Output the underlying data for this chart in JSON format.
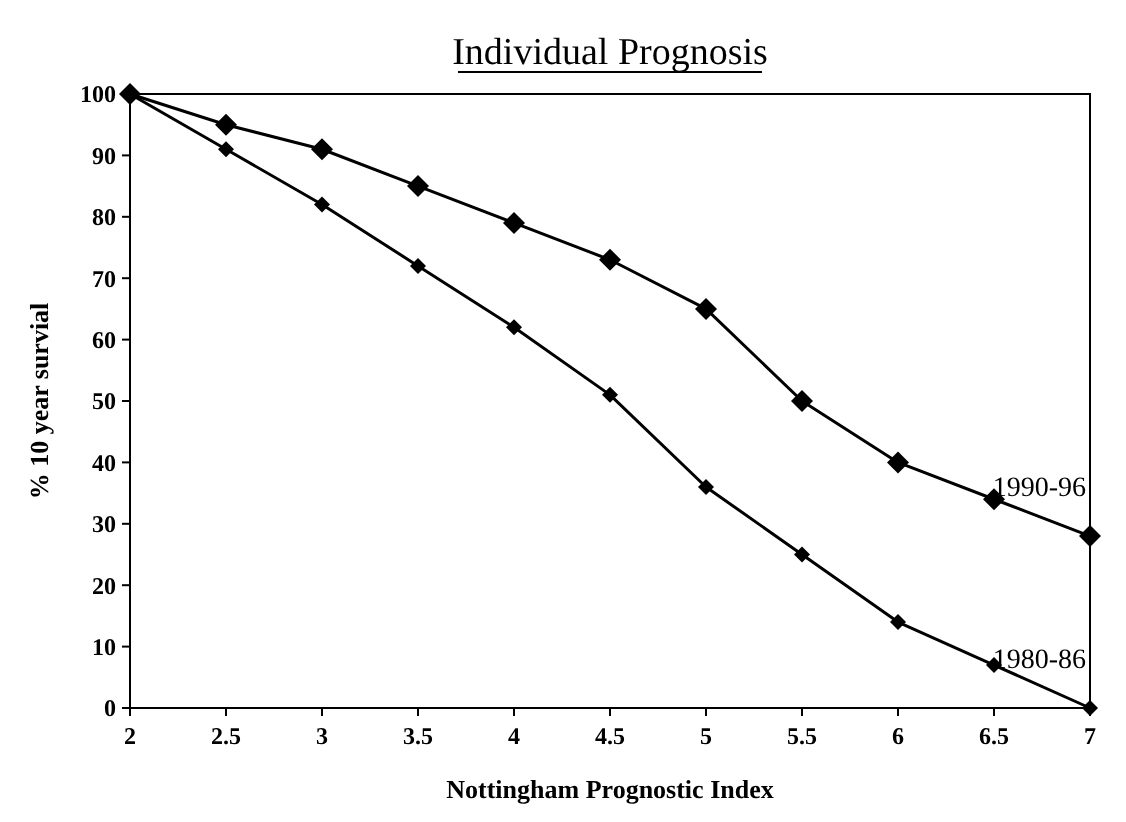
{
  "chart_data": {
    "type": "line",
    "title": "Individual Prognosis",
    "xlabel": "Nottingham Prognostic Index",
    "ylabel": "% 10 year survial",
    "x": [
      2,
      2.5,
      3,
      3.5,
      4,
      4.5,
      5,
      5.5,
      6,
      6.5,
      7
    ],
    "series": [
      {
        "name": "1990-96",
        "color": "#000000",
        "values": [
          100,
          95,
          91,
          85,
          79,
          73,
          65,
          50,
          40,
          34,
          28
        ]
      },
      {
        "name": "1980-86",
        "color": "#000000",
        "values": [
          100,
          91,
          82,
          72,
          62,
          51,
          36,
          25,
          14,
          7,
          0
        ]
      }
    ],
    "xlim": [
      2,
      7
    ],
    "xticks": [
      2,
      2.5,
      3,
      3.5,
      4,
      4.5,
      5,
      5.5,
      6,
      6.5,
      7
    ],
    "ylim": [
      0,
      100
    ],
    "yticks": [
      0,
      10,
      20,
      30,
      40,
      50,
      60,
      70,
      80,
      90,
      100
    ],
    "grid": false,
    "legend": false,
    "marker": "diamond",
    "line_style": "solid"
  }
}
